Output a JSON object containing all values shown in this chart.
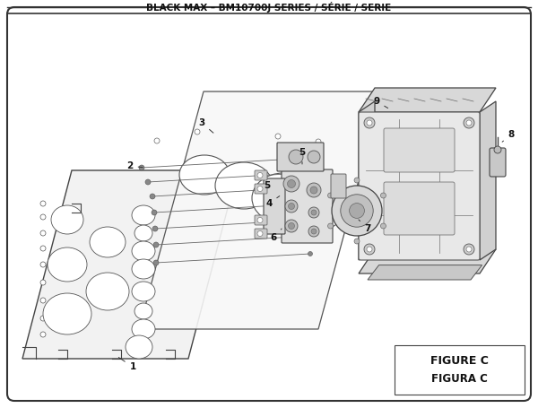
{
  "title": "BLACK MAX – BM10700J SERIES / SÉRIE / SERIE",
  "figure_label": "FIGURE C",
  "figura_label": "FIGURA C",
  "bg_color": "#ffffff",
  "border_color": "#333333",
  "text_color": "#111111",
  "title_fontsize": 7.5,
  "label_fontsize": 7.5
}
